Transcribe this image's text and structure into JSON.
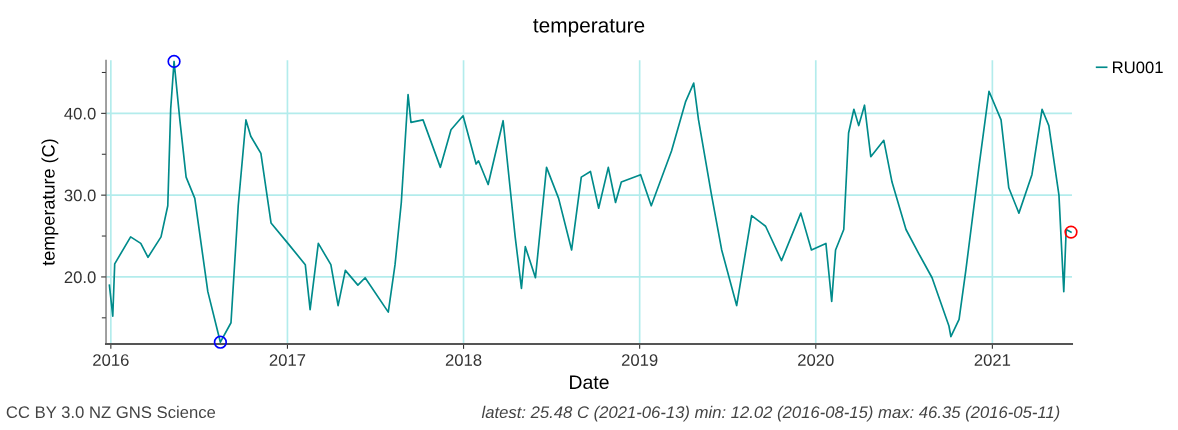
{
  "chart_data": {
    "type": "line",
    "title": "temperature",
    "xlabel": "Date",
    "ylabel": "temperature (C)",
    "xlim": [
      "2015-12-22",
      "2021-06-15"
    ],
    "xticks": [
      {
        "value": "2016-01-01",
        "label": "2016"
      },
      {
        "value": "2017-01-01",
        "label": "2017"
      },
      {
        "value": "2018-01-01",
        "label": "2018"
      },
      {
        "value": "2019-01-01",
        "label": "2019"
      },
      {
        "value": "2020-01-01",
        "label": "2020"
      },
      {
        "value": "2021-01-01",
        "label": "2021"
      }
    ],
    "ylim": [
      11.8,
      46.5
    ],
    "yticks": [
      {
        "value": 15,
        "label": null
      },
      {
        "value": 20,
        "label": "20.0"
      },
      {
        "value": 25,
        "label": null
      },
      {
        "value": 30,
        "label": "30.0"
      },
      {
        "value": 35,
        "label": null
      },
      {
        "value": 40,
        "label": "40.0"
      },
      {
        "value": 45,
        "label": null
      }
    ],
    "grid": true,
    "legend": "top right",
    "marker": "none",
    "line_style": "solid",
    "series": [
      {
        "name": "RU001",
        "color": "#008b8b",
        "x": [
          "2015-12-29",
          "2016-01-05",
          "2016-01-09",
          "2016-02-11",
          "2016-03-03",
          "2016-03-18",
          "2016-04-14",
          "2016-04-28",
          "2016-05-04",
          "2016-05-11",
          "2016-05-23",
          "2016-06-05",
          "2016-06-23",
          "2016-07-20",
          "2016-08-10",
          "2016-08-15",
          "2016-09-06",
          "2016-09-21",
          "2016-10-07",
          "2016-10-17",
          "2016-11-07",
          "2016-11-28",
          "2017-01-02",
          "2017-02-07",
          "2017-02-17",
          "2017-03-06",
          "2017-04-01",
          "2017-04-16",
          "2017-05-01",
          "2017-05-27",
          "2017-06-11",
          "2017-07-29",
          "2017-08-12",
          "2017-08-25",
          "2017-09-08",
          "2017-09-14",
          "2017-10-09",
          "2017-11-14",
          "2017-12-06",
          "2017-12-31",
          "2018-01-27",
          "2018-02-01",
          "2018-02-21",
          "2018-03-24",
          "2018-04-18",
          "2018-05-01",
          "2018-05-09",
          "2018-05-30",
          "2018-06-22",
          "2018-07-17",
          "2018-08-13",
          "2018-09-02",
          "2018-09-21",
          "2018-10-08",
          "2018-10-28",
          "2018-11-12",
          "2018-11-24",
          "2019-01-03",
          "2019-01-25",
          "2019-03-08",
          "2019-04-06",
          "2019-04-23",
          "2019-05-03",
          "2019-05-30",
          "2019-06-20",
          "2019-07-21",
          "2019-08-21",
          "2019-09-19",
          "2019-10-22",
          "2019-12-01",
          "2019-12-23",
          "2020-01-22",
          "2020-02-03",
          "2020-02-11",
          "2020-02-28",
          "2020-03-09",
          "2020-03-20",
          "2020-03-30",
          "2020-04-11",
          "2020-04-24",
          "2020-05-21",
          "2020-06-07",
          "2020-07-06",
          "2020-08-02",
          "2020-08-29",
          "2020-10-03",
          "2020-10-07",
          "2020-10-24",
          "2020-11-07",
          "2020-12-04",
          "2020-12-25",
          "2021-01-19",
          "2021-02-04",
          "2021-02-25",
          "2021-03-24",
          "2021-04-14",
          "2021-04-28",
          "2021-05-19",
          "2021-05-29",
          "2021-06-03",
          "2021-06-13"
        ],
        "values": [
          19.0,
          15.2,
          21.6,
          24.9,
          24.1,
          22.4,
          24.9,
          28.7,
          40.5,
          46.35,
          39.2,
          32.2,
          29.6,
          18.2,
          13.2,
          12.02,
          14.4,
          28.7,
          39.2,
          37.2,
          35.1,
          26.6,
          24.1,
          21.5,
          16.0,
          24.1,
          21.5,
          16.5,
          20.8,
          19.0,
          19.9,
          15.7,
          21.5,
          29.1,
          42.3,
          38.9,
          39.2,
          33.4,
          38.0,
          39.7,
          33.8,
          34.2,
          31.3,
          39.1,
          24.9,
          18.6,
          23.7,
          19.9,
          33.4,
          29.6,
          23.3,
          32.2,
          32.9,
          28.4,
          33.4,
          29.1,
          31.6,
          32.5,
          28.7,
          35.4,
          41.4,
          43.7,
          39.2,
          30.0,
          23.3,
          16.5,
          27.5,
          26.2,
          22.0,
          27.8,
          23.3,
          24.1,
          17.0,
          23.3,
          25.8,
          37.6,
          40.5,
          38.5,
          41.0,
          34.7,
          36.7,
          31.6,
          25.8,
          22.8,
          19.9,
          14.0,
          12.7,
          14.8,
          20.8,
          33.4,
          42.7,
          39.2,
          30.9,
          27.8,
          32.5,
          40.5,
          38.5,
          30.0,
          18.2,
          25.8,
          25.48
        ]
      },
      {
        "type": "scatter",
        "marker": "circle",
        "x": [
          "2016-05-11",
          "2016-08-15",
          "2021-06-13"
        ],
        "values": [
          46.35,
          12.02,
          25.48
        ],
        "colors": [
          "#0000ff",
          "#0000ff",
          "#ff0000"
        ]
      }
    ],
    "annotations": [
      "CC BY 3.0 NZ GNS Science",
      "latest: 25.48 C (2021-06-13) min: 12.02 (2016-08-15) max: 46.35 (2016-05-11)"
    ]
  }
}
